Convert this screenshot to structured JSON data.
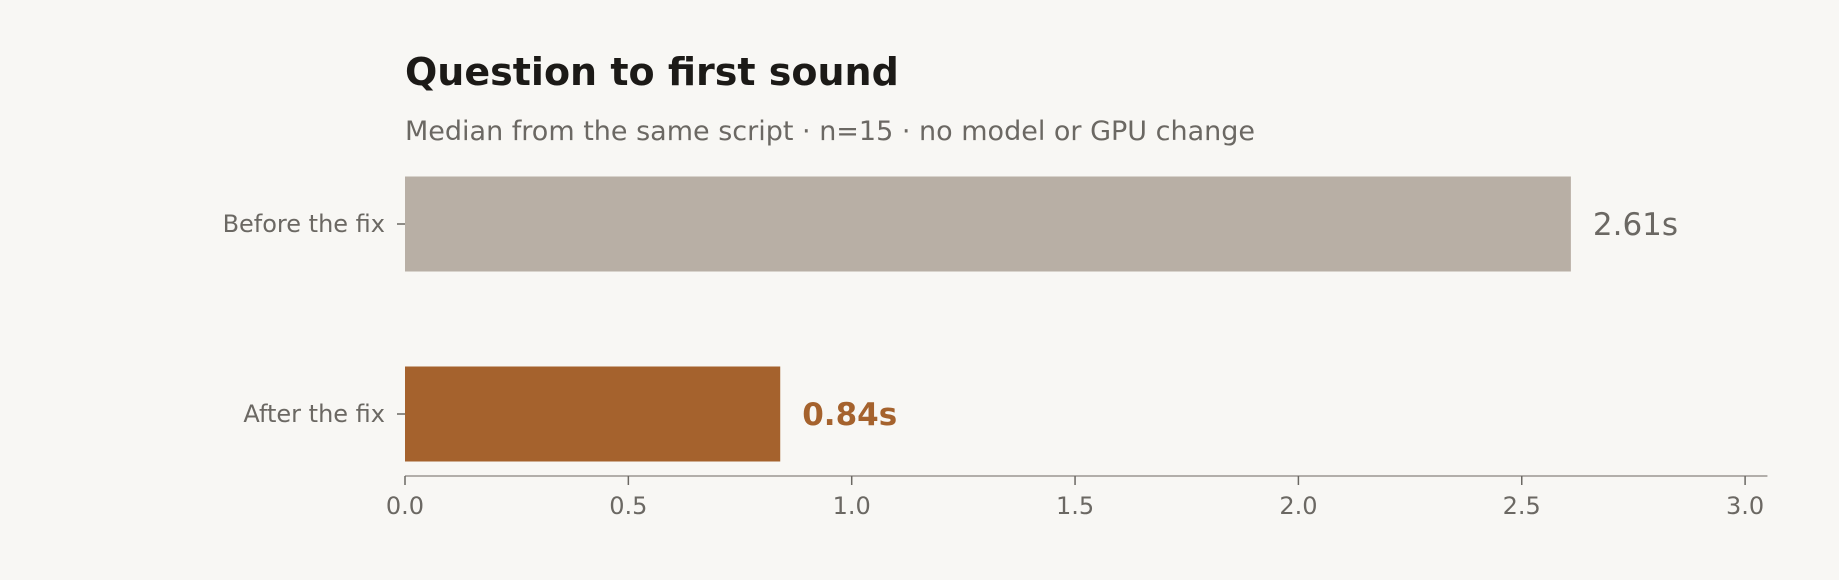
{
  "chart_data": {
    "type": "bar",
    "orientation": "horizontal",
    "title": "Question to first sound",
    "subtitle": "Median from the same script · n=15 · no model or GPU change",
    "categories": [
      "Before the fix",
      "After the fix"
    ],
    "values": [
      2.61,
      0.84
    ],
    "value_labels": [
      "2.61s",
      "0.84s"
    ],
    "colors": [
      "#b8afa5",
      "#a5622d"
    ],
    "label_colors": [
      "#6b6863",
      "#a5622d"
    ],
    "label_bold": [
      false,
      true
    ],
    "xlabel": "",
    "ylabel": "",
    "xlim": [
      0,
      3.05
    ],
    "xticks": [
      0.0,
      0.5,
      1.0,
      1.5,
      2.0,
      2.5,
      3.0
    ],
    "xtick_labels": [
      "0.0",
      "0.5",
      "1.0",
      "1.5",
      "2.0",
      "2.5",
      "3.0"
    ],
    "grid": false,
    "legend": "none"
  }
}
